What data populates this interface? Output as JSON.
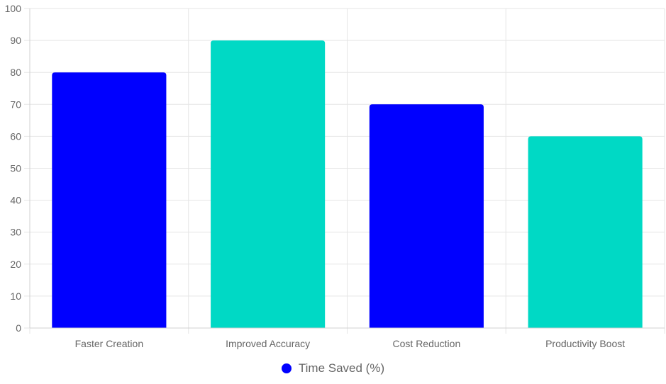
{
  "chart_data": {
    "type": "bar",
    "title": "",
    "xlabel": "",
    "ylabel": "",
    "categories": [
      "Faster Creation",
      "Improved Accuracy",
      "Cost Reduction",
      "Productivity Boost"
    ],
    "series": [
      {
        "name": "Time Saved (%)",
        "values": [
          80,
          90,
          70,
          60
        ]
      }
    ],
    "bar_colors": [
      "#0000ff",
      "#00d9c5",
      "#0000ff",
      "#00d9c5"
    ],
    "legend_color": "#0000ff",
    "ylim": [
      0,
      100
    ],
    "y_ticks": [
      "0",
      "10",
      "20",
      "30",
      "40",
      "50",
      "60",
      "70",
      "80",
      "90",
      "100"
    ],
    "grid": true,
    "legend_position": "bottom"
  }
}
